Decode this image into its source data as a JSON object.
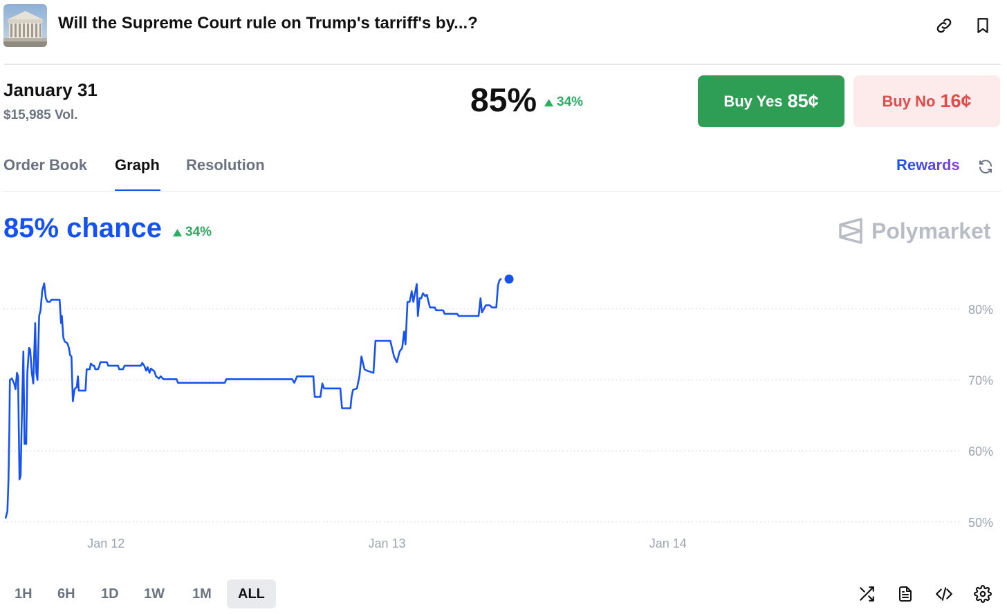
{
  "header": {
    "title": "Will the Supreme Court rule on Trump's tarriff's by...?",
    "thumbnail_icon": "supreme-court-building-image",
    "actions": [
      "link-icon",
      "bookmark-icon"
    ]
  },
  "market": {
    "name": "January 31",
    "volume": "$15,985 Vol.",
    "probability": "85%",
    "delta": "34%",
    "buy_yes_label": "Buy Yes",
    "buy_yes_price": "85¢",
    "buy_no_label": "Buy No",
    "buy_no_price": "16¢"
  },
  "tabs": [
    {
      "label": "Order Book",
      "active": false
    },
    {
      "label": "Graph",
      "active": true
    },
    {
      "label": "Resolution",
      "active": false
    }
  ],
  "rewards_label": "Rewards",
  "chart_header": {
    "chance": "85% chance",
    "delta": "34%",
    "brand": "Polymarket"
  },
  "ranges": [
    {
      "label": "1H",
      "active": false
    },
    {
      "label": "6H",
      "active": false
    },
    {
      "label": "1D",
      "active": false
    },
    {
      "label": "1W",
      "active": false
    },
    {
      "label": "1M",
      "active": false
    },
    {
      "label": "ALL",
      "active": true
    }
  ],
  "tools": [
    "shuffle-icon",
    "document-icon",
    "code-icon",
    "settings-icon"
  ],
  "colors": {
    "accent": "#1652f0",
    "positive": "#27ae60",
    "yes": "#2f9e55",
    "no_bg": "#fdebeb",
    "no_text": "#e04b4b"
  },
  "chart_data": {
    "type": "line",
    "x_unit": "days since Jan 11 00:00",
    "x_ticks": [
      {
        "x": 1,
        "label": "Jan 12"
      },
      {
        "x": 2,
        "label": "Jan 13"
      },
      {
        "x": 3,
        "label": "Jan 14"
      }
    ],
    "y_ticks": [
      50,
      60,
      70,
      80
    ],
    "y_tick_labels": [
      "50%",
      "60%",
      "70%",
      "80%"
    ],
    "ylim": [
      49.5,
      86.5
    ],
    "xlim": [
      0.635,
      3.995
    ],
    "grid": true,
    "series": [
      {
        "name": "",
        "points": [
          [
            0.643,
            50.6
          ],
          [
            0.649,
            51.5
          ],
          [
            0.653,
            56
          ],
          [
            0.656,
            63
          ],
          [
            0.658,
            70
          ],
          [
            0.665,
            70.2
          ],
          [
            0.673,
            69.5
          ],
          [
            0.678,
            68.7
          ],
          [
            0.683,
            71
          ],
          [
            0.687,
            70.5
          ],
          [
            0.692,
            56
          ],
          [
            0.696,
            56.5
          ],
          [
            0.7,
            64
          ],
          [
            0.706,
            74
          ],
          [
            0.71,
            61
          ],
          [
            0.716,
            61
          ],
          [
            0.72,
            71
          ],
          [
            0.726,
            74.5
          ],
          [
            0.73,
            74.3
          ],
          [
            0.736,
            71
          ],
          [
            0.741,
            69.5
          ],
          [
            0.748,
            78
          ],
          [
            0.752,
            71
          ],
          [
            0.756,
            70
          ],
          [
            0.762,
            79
          ],
          [
            0.767,
            79.8
          ],
          [
            0.773,
            82.6
          ],
          [
            0.78,
            83.6
          ],
          [
            0.786,
            81.5
          ],
          [
            0.792,
            81
          ],
          [
            0.8,
            81
          ],
          [
            0.806,
            81.3
          ],
          [
            0.812,
            81.3
          ],
          [
            0.835,
            81.3
          ],
          [
            0.84,
            78
          ],
          [
            0.843,
            79
          ],
          [
            0.848,
            76
          ],
          [
            0.853,
            75.4
          ],
          [
            0.862,
            75.2
          ],
          [
            0.868,
            74.5
          ],
          [
            0.872,
            73.5
          ],
          [
            0.877,
            73.3
          ],
          [
            0.882,
            67
          ],
          [
            0.888,
            68.7
          ],
          [
            0.896,
            69
          ],
          [
            0.9,
            70.5
          ],
          [
            0.903,
            68.5
          ],
          [
            0.92,
            68.5
          ],
          [
            0.927,
            68.5
          ],
          [
            0.931,
            71.5
          ],
          [
            0.942,
            71.5
          ],
          [
            0.946,
            72.3
          ],
          [
            0.954,
            72
          ],
          [
            0.958,
            72
          ],
          [
            0.962,
            71.5
          ],
          [
            0.971,
            71.5
          ],
          [
            0.975,
            71.8
          ],
          [
            0.98,
            72.5
          ],
          [
            1.003,
            72.5
          ],
          [
            1.008,
            72
          ],
          [
            1.043,
            72
          ],
          [
            1.047,
            71.5
          ],
          [
            1.06,
            71.5
          ],
          [
            1.066,
            72
          ],
          [
            1.124,
            72
          ],
          [
            1.129,
            72.4
          ],
          [
            1.136,
            72
          ],
          [
            1.143,
            71.3
          ],
          [
            1.148,
            71.8
          ],
          [
            1.155,
            71
          ],
          [
            1.16,
            71.6
          ],
          [
            1.172,
            71.2
          ],
          [
            1.178,
            70.5
          ],
          [
            1.188,
            70.2
          ],
          [
            1.195,
            70.5
          ],
          [
            1.204,
            70.1
          ],
          [
            1.251,
            70.1
          ],
          [
            1.256,
            69.6
          ],
          [
            1.423,
            69.6
          ],
          [
            1.428,
            70.1
          ],
          [
            1.663,
            70.1
          ],
          [
            1.67,
            69.6
          ],
          [
            1.68,
            70.5
          ],
          [
            1.738,
            70.5
          ],
          [
            1.743,
            67.6
          ],
          [
            1.763,
            67.6
          ],
          [
            1.77,
            69.5
          ],
          [
            1.776,
            68.8
          ],
          [
            1.834,
            68.8
          ],
          [
            1.84,
            66
          ],
          [
            1.87,
            66
          ],
          [
            1.874,
            67.6
          ],
          [
            1.879,
            68.6
          ],
          [
            1.893,
            68.8
          ],
          [
            1.902,
            70.5
          ],
          [
            1.909,
            73.3
          ],
          [
            1.92,
            71.5
          ],
          [
            1.929,
            71.3
          ],
          [
            1.952,
            71
          ],
          [
            1.959,
            75.5
          ],
          [
            2.012,
            75.5
          ],
          [
            2.025,
            73.3
          ],
          [
            2.035,
            72.5
          ],
          [
            2.045,
            74
          ],
          [
            2.054,
            74.5
          ],
          [
            2.061,
            76.8
          ],
          [
            2.066,
            75
          ],
          [
            2.073,
            81
          ],
          [
            2.081,
            81
          ],
          [
            2.088,
            82.5
          ],
          [
            2.094,
            81
          ],
          [
            2.1,
            82.3
          ],
          [
            2.106,
            83.5
          ],
          [
            2.11,
            79
          ],
          [
            2.116,
            81.5
          ],
          [
            2.122,
            81.5
          ],
          [
            2.128,
            82.2
          ],
          [
            2.136,
            81.8
          ],
          [
            2.142,
            82
          ],
          [
            2.146,
            81.3
          ],
          [
            2.153,
            80.2
          ],
          [
            2.17,
            80.2
          ],
          [
            2.175,
            79.8
          ],
          [
            2.2,
            79.8
          ],
          [
            2.205,
            79.3
          ],
          [
            2.25,
            79.3
          ],
          [
            2.255,
            79
          ],
          [
            2.326,
            79
          ],
          [
            2.333,
            81.5
          ],
          [
            2.338,
            79.5
          ],
          [
            2.352,
            80.5
          ],
          [
            2.366,
            80.5
          ],
          [
            2.374,
            80.2
          ],
          [
            2.389,
            80.2
          ],
          [
            2.395,
            83.3
          ],
          [
            2.4,
            84
          ],
          [
            2.405,
            84.2
          ]
        ]
      }
    ]
  }
}
